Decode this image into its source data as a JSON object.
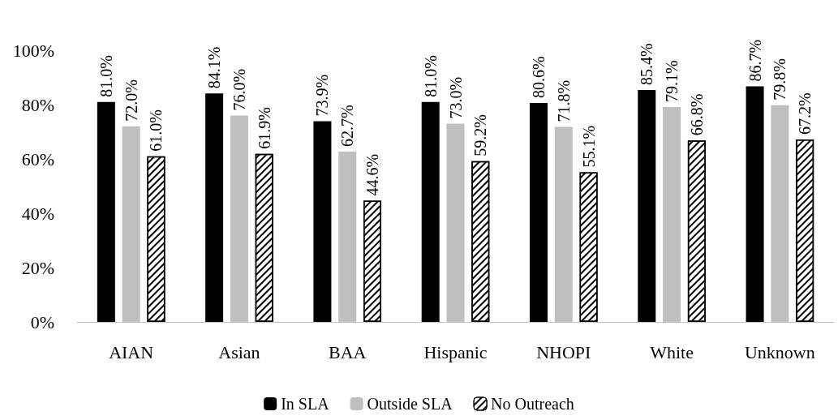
{
  "chart_data": {
    "type": "bar",
    "categories": [
      "AIAN",
      "Asian",
      "BAA",
      "Hispanic",
      "NHOPI",
      "White",
      "Unknown"
    ],
    "series": [
      {
        "name": "In SLA",
        "color": "#000000",
        "values": [
          81.0,
          84.1,
          73.9,
          81.0,
          80.6,
          85.4,
          86.7
        ],
        "value_labels": [
          "81.0%",
          "84.1%",
          "73.9%",
          "81.0%",
          "80.6%",
          "85.4%",
          "86.7%"
        ]
      },
      {
        "name": "Outside SLA",
        "color": "#bfbfbf",
        "values": [
          72.0,
          76.0,
          62.7,
          73.0,
          71.8,
          79.1,
          79.8
        ],
        "value_labels": [
          "72.0%",
          "76.0%",
          "62.7%",
          "73.0%",
          "71.8%",
          "79.1%",
          "79.8%"
        ]
      },
      {
        "name": "No Outreach",
        "color": "#ffffff",
        "values": [
          61.0,
          61.9,
          44.6,
          59.2,
          55.1,
          66.8,
          67.2
        ],
        "value_labels": [
          "61.0%",
          "61.9%",
          "44.6%",
          "59.2%",
          "55.1%",
          "66.8%",
          "67.2%"
        ]
      }
    ],
    "ylim": [
      0,
      100
    ],
    "yticks": [
      {
        "value": 0,
        "label": "0%"
      },
      {
        "value": 20,
        "label": "20%"
      },
      {
        "value": 40,
        "label": "40%"
      },
      {
        "value": 60,
        "label": "60%"
      },
      {
        "value": 80,
        "label": "80%"
      },
      {
        "value": 100,
        "label": "100%"
      }
    ],
    "grid": false,
    "legend": "bottom"
  }
}
